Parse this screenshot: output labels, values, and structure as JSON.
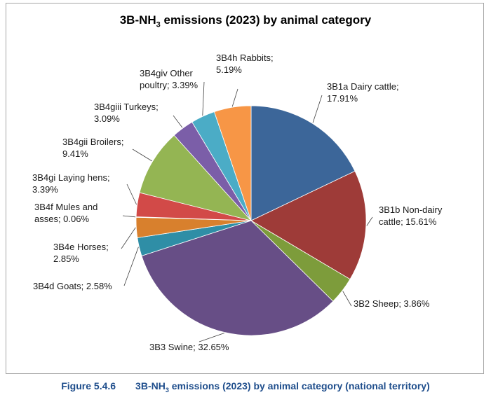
{
  "chart_data": {
    "type": "pie",
    "title_parts": {
      "pre": "3B-NH",
      "sub": "3",
      "post": " emissions (2023) by animal category"
    },
    "slices": [
      {
        "name": "3B1a Dairy cattle",
        "value": 17.91,
        "label_lines": [
          "3B1a Dairy cattle;",
          "17.91%"
        ],
        "color": "#3c6699"
      },
      {
        "name": "3B1b Non-dairy cattle",
        "value": 15.61,
        "label_lines": [
          "3B1b Non-dairy",
          "cattle; 15.61%"
        ],
        "color": "#9e3b38"
      },
      {
        "name": "3B2 Sheep",
        "value": 3.86,
        "label_lines": [
          "3B2 Sheep; 3.86%"
        ],
        "color": "#7d9c3b"
      },
      {
        "name": "3B3 Swine",
        "value": 32.65,
        "label_lines": [
          "3B3 Swine; 32.65%"
        ],
        "color": "#674e86"
      },
      {
        "name": "3B4d Goats",
        "value": 2.58,
        "label_lines": [
          "3B4d Goats; 2.58%"
        ],
        "color": "#2f8ea6"
      },
      {
        "name": "3B4e Horses",
        "value": 2.85,
        "label_lines": [
          "3B4e Horses;",
          "2.85%"
        ],
        "color": "#d8802d"
      },
      {
        "name": "3B4f Mules and asses",
        "value": 0.06,
        "label_lines": [
          "3B4f Mules and",
          "asses; 0.06%"
        ],
        "color": "#4f6f9f"
      },
      {
        "name": "3B4gi Laying hens",
        "value": 3.39,
        "label_lines": [
          "3B4gi Laying hens;",
          "3.39%"
        ],
        "color": "#d24a48"
      },
      {
        "name": "3B4gii Broilers",
        "value": 9.41,
        "label_lines": [
          "3B4gii Broilers;",
          "9.41%"
        ],
        "color": "#94b553"
      },
      {
        "name": "3B4giii Turkeys",
        "value": 3.09,
        "label_lines": [
          "3B4giii Turkeys;",
          "3.09%"
        ],
        "color": "#7b5ea8"
      },
      {
        "name": "3B4giv Other poultry",
        "value": 3.39,
        "label_lines": [
          "3B4giv Other",
          "poultry; 3.39%"
        ],
        "color": "#4bacc6"
      },
      {
        "name": "3B4h Rabbits",
        "value": 5.19,
        "label_lines": [
          "3B4h Rabbits;",
          "5.19%"
        ],
        "color": "#f79646"
      }
    ]
  },
  "caption": {
    "figure_number": "Figure 5.4.6",
    "text_pre": "3B-NH",
    "text_sub": "3",
    "text_post": " emissions (2023) by animal category (national territory)"
  }
}
